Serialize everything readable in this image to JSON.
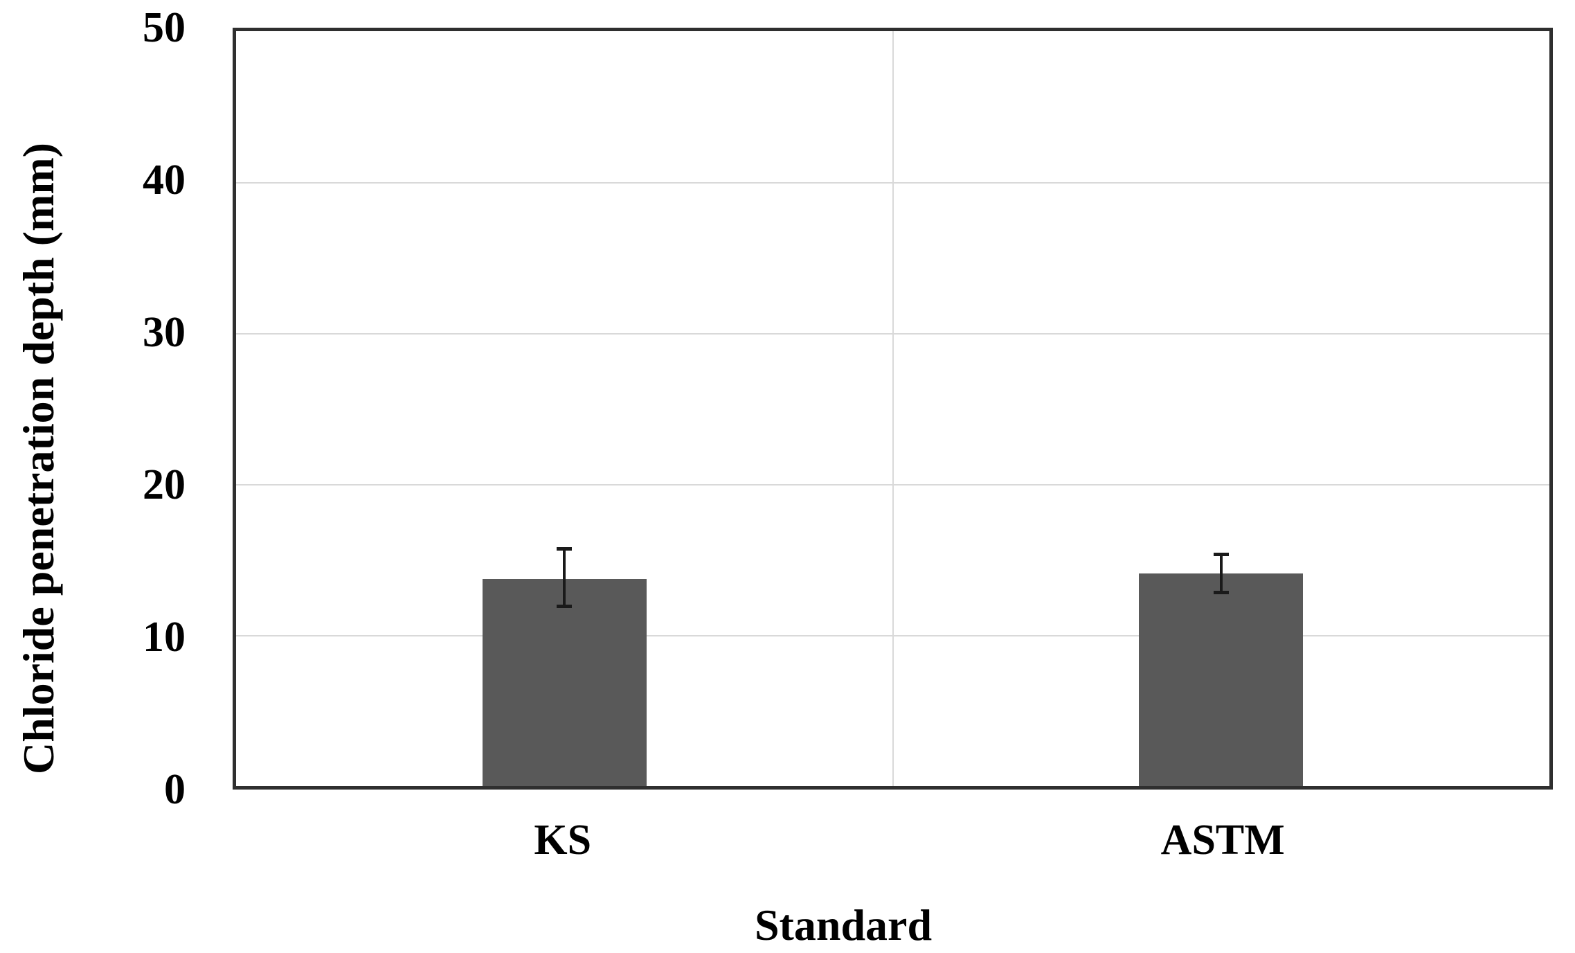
{
  "chart_data": {
    "type": "bar",
    "title": "",
    "xlabel": "Standard",
    "ylabel": "Chloride penetration depth (mm)",
    "categories": [
      "KS",
      "ASTM"
    ],
    "values": [
      13.7,
      14.1
    ],
    "error_plus": [
      2.0,
      1.2
    ],
    "error_minus": [
      1.8,
      1.3
    ],
    "ylim": [
      0,
      50
    ],
    "yticks": [
      0,
      10,
      20,
      30,
      40,
      50
    ],
    "grid": {
      "horizontal": "light gray line at every y tick",
      "vertical": "single light gray line at category boundary (plot center)"
    },
    "legend_position": "none",
    "colors": {
      "bar_fill": "#595959",
      "gridline": "#d9d9d9",
      "plot_border": "#2f2f2f",
      "error_bar": "#1a1a1a",
      "text": "#000000"
    }
  }
}
